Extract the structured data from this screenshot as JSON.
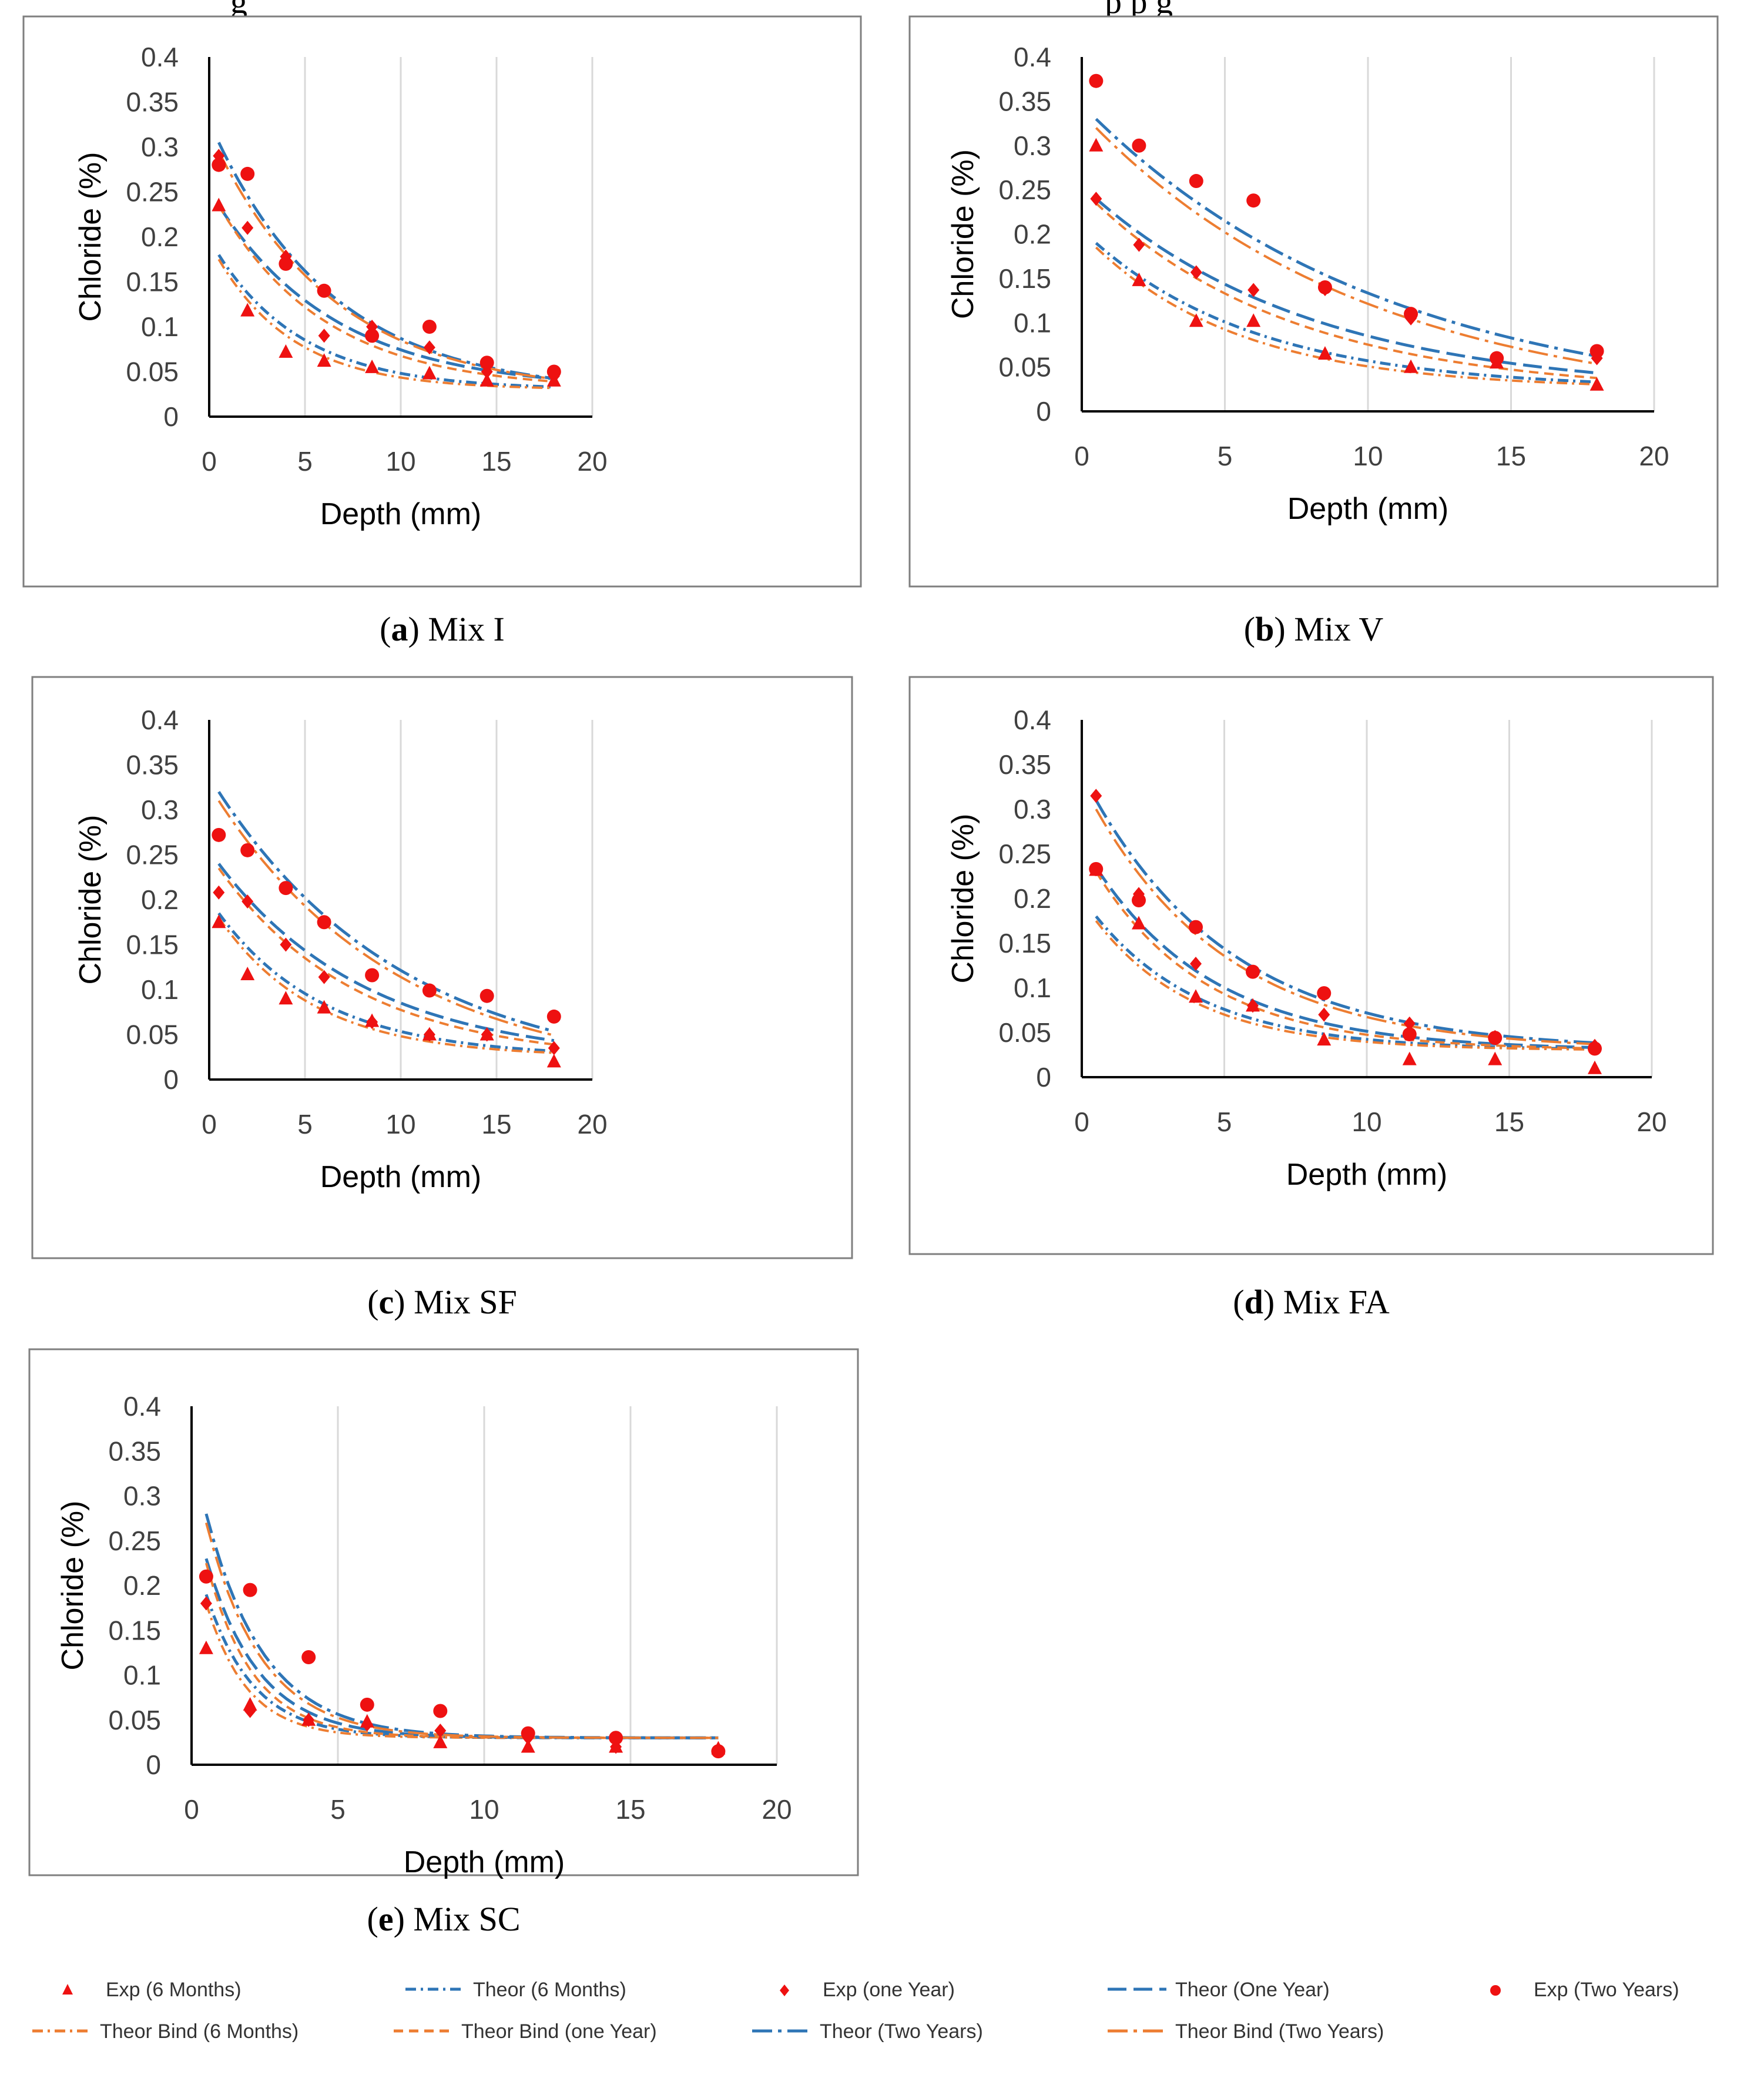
{
  "top_fragments": {
    "left": "g",
    "right": "p   p   g"
  },
  "series_styles": {
    "exp6": {
      "color": "#ee1111",
      "marker": "triangle"
    },
    "exp1": {
      "color": "#ee1111",
      "marker": "diamond"
    },
    "exp2": {
      "color": "#ee1111",
      "marker": "circle"
    },
    "theor6": {
      "color": "#2e75b6",
      "dash": "dashdot-fine"
    },
    "theor1": {
      "color": "#2e75b6",
      "dash": "long-dash"
    },
    "theor2": {
      "color": "#2e75b6",
      "dash": "long-dashdot"
    },
    "bind6": {
      "color": "#ed7d31",
      "dash": "dashdot-fine"
    },
    "bind1": {
      "color": "#ed7d31",
      "dash": "dash"
    },
    "bind2": {
      "color": "#ed7d31",
      "dash": "long-dashdot"
    }
  },
  "legend": [
    {
      "key": "exp6",
      "label": "Exp (6 Months)"
    },
    {
      "key": "theor6",
      "label": "Theor (6 Months)"
    },
    {
      "key": "exp1",
      "label": "Exp (one Year)"
    },
    {
      "key": "theor1",
      "label": "Theor (One Year)"
    },
    {
      "key": "exp2",
      "label": "Exp (Two Years)"
    },
    {
      "key": "bind6",
      "label": "Theor Bind (6 Months)"
    },
    {
      "key": "bind1",
      "label": "Theor Bind (one Year)"
    },
    {
      "key": "theor2",
      "label": "Theor (Two Years)"
    },
    {
      "key": "bind2",
      "label": "Theor Bind (Two Years)"
    }
  ],
  "chart_data": [
    {
      "id": "a",
      "type": "scatter",
      "caption_letter": "a",
      "caption_text": "Mix I",
      "xlabel": "Depth (mm)",
      "ylabel": "Chloride (%)",
      "xlim": [
        0,
        20
      ],
      "ylim": [
        0,
        0.4
      ],
      "xticks": [
        "0",
        "5",
        "10",
        "15",
        "20"
      ],
      "yticks": [
        "0",
        "0.05",
        "0.1",
        "0.15",
        "0.2",
        "0.25",
        "0.3",
        "0.35",
        "0.4"
      ],
      "depths": [
        0.5,
        2,
        4,
        6,
        8.5,
        11.5,
        14.5,
        18
      ],
      "exp6": [
        0.235,
        0.118,
        0.072,
        0.062,
        0.055,
        0.048,
        0.04,
        0.04
      ],
      "exp1": [
        0.29,
        0.21,
        0.178,
        0.09,
        0.1,
        0.077,
        0.05,
        0.045
      ],
      "exp2": [
        0.28,
        0.27,
        0.17,
        0.14,
        0.09,
        0.1,
        0.06,
        0.05
      ],
      "curves": {
        "theor6": {
          "y0": 0.18,
          "yinf": 0.03,
          "k": 4.5
        },
        "bind6": {
          "y0": 0.175,
          "yinf": 0.03,
          "k": 4.0
        },
        "theor1": {
          "y0": 0.235,
          "yinf": 0.03,
          "k": 6.2
        },
        "bind1": {
          "y0": 0.235,
          "yinf": 0.03,
          "k": 5.6
        },
        "theor2": {
          "y0": 0.305,
          "yinf": 0.025,
          "k": 6.3
        },
        "bind2": {
          "y0": 0.295,
          "yinf": 0.025,
          "k": 6.3
        }
      }
    },
    {
      "id": "b",
      "type": "scatter",
      "caption_letter": "b",
      "caption_text": "Mix V",
      "xlabel": "Depth (mm)",
      "ylabel": "Chloride (%)",
      "xlim": [
        0,
        20
      ],
      "ylim": [
        0,
        0.4
      ],
      "xticks": [
        "0",
        "5",
        "10",
        "15",
        "20"
      ],
      "yticks": [
        "0",
        "0.05",
        "0.1",
        "0.15",
        "0.2",
        "0.25",
        "0.3",
        "0.35",
        "0.4"
      ],
      "depths": [
        0.5,
        2,
        4,
        6,
        8.5,
        11.5,
        14.5,
        18
      ],
      "exp6": [
        0.3,
        0.148,
        0.102,
        0.102,
        0.065,
        0.05,
        0.055,
        0.03
      ],
      "exp1": [
        0.24,
        0.188,
        0.157,
        0.137,
        0.138,
        0.105,
        0.06,
        0.06
      ],
      "exp2": [
        0.373,
        0.3,
        0.26,
        0.238,
        0.14,
        0.11,
        0.06,
        0.068
      ],
      "curves": {
        "theor6": {
          "y0": 0.19,
          "yinf": 0.025,
          "k": 5.8
        },
        "bind6": {
          "y0": 0.185,
          "yinf": 0.025,
          "k": 5.2
        },
        "theor1": {
          "y0": 0.24,
          "yinf": 0.02,
          "k": 7.8
        },
        "bind1": {
          "y0": 0.235,
          "yinf": 0.02,
          "k": 7.0
        },
        "theor2": {
          "y0": 0.33,
          "yinf": 0.0,
          "k": 10.5
        },
        "bind2": {
          "y0": 0.32,
          "yinf": 0.0,
          "k": 9.8
        }
      }
    },
    {
      "id": "c",
      "type": "scatter",
      "caption_letter": "c",
      "caption_text": "Mix SF",
      "xlabel": "Depth (mm)",
      "ylabel": "Chloride (%)",
      "xlim": [
        0,
        20
      ],
      "ylim": [
        0,
        0.4
      ],
      "xticks": [
        "0",
        "5",
        "10",
        "15",
        "20"
      ],
      "yticks": [
        "0",
        "0.05",
        "0.1",
        "0.15",
        "0.2",
        "0.25",
        "0.3",
        "0.35",
        "0.4"
      ],
      "depths": [
        0.5,
        2,
        4,
        6,
        8.5,
        11.5,
        14.5,
        18
      ],
      "exp6": [
        0.175,
        0.117,
        0.09,
        0.08,
        0.065,
        0.05,
        0.05,
        0.02
      ],
      "exp1": [
        0.208,
        0.198,
        0.15,
        0.114,
        0.064,
        0.05,
        0.05,
        0.035
      ],
      "exp2": [
        0.272,
        0.255,
        0.213,
        0.175,
        0.116,
        0.099,
        0.093,
        0.07
      ],
      "curves": {
        "theor6": {
          "y0": 0.185,
          "yinf": 0.025,
          "k": 5.5
        },
        "bind6": {
          "y0": 0.18,
          "yinf": 0.025,
          "k": 5.0
        },
        "theor1": {
          "y0": 0.24,
          "yinf": 0.02,
          "k": 7.8
        },
        "bind1": {
          "y0": 0.235,
          "yinf": 0.02,
          "k": 7.2
        },
        "theor2": {
          "y0": 0.32,
          "yinf": 0.0,
          "k": 9.8
        },
        "bind2": {
          "y0": 0.31,
          "yinf": 0.0,
          "k": 9.5
        }
      }
    },
    {
      "id": "d",
      "type": "scatter",
      "caption_letter": "d",
      "caption_text": "Mix FA",
      "xlabel": "Depth (mm)",
      "ylabel": "Chloride (%)",
      "xlim": [
        0,
        20
      ],
      "ylim": [
        0,
        0.4
      ],
      "xticks": [
        "0",
        "5",
        "10",
        "15",
        "20"
      ],
      "yticks": [
        "0",
        "0.05",
        "0.1",
        "0.15",
        "0.2",
        "0.25",
        "0.3",
        "0.35",
        "0.4"
      ],
      "depths": [
        0.5,
        2,
        4,
        6,
        8.5,
        11.5,
        14.5,
        18
      ],
      "exp6": [
        0.232,
        0.172,
        0.09,
        0.08,
        0.042,
        0.02,
        0.02,
        0.01
      ],
      "exp1": [
        0.315,
        0.205,
        0.127,
        0.08,
        0.07,
        0.06,
        0.045,
        0.035
      ],
      "exp2": [
        0.233,
        0.198,
        0.168,
        0.118,
        0.094,
        0.048,
        0.044,
        0.032
      ],
      "curves": {
        "theor6": {
          "y0": 0.18,
          "yinf": 0.03,
          "k": 3.8
        },
        "bind6": {
          "y0": 0.175,
          "yinf": 0.03,
          "k": 3.5
        },
        "theor1": {
          "y0": 0.235,
          "yinf": 0.03,
          "k": 4.2
        },
        "bind1": {
          "y0": 0.23,
          "yinf": 0.03,
          "k": 3.9
        },
        "theor2": {
          "y0": 0.31,
          "yinf": 0.03,
          "k": 5.0
        },
        "bind2": {
          "y0": 0.3,
          "yinf": 0.03,
          "k": 4.8
        }
      }
    },
    {
      "id": "e",
      "type": "scatter",
      "caption_letter": "e",
      "caption_text": "Mix SC",
      "xlabel": "Depth (mm)",
      "ylabel": "Chloride (%)",
      "xlim": [
        0,
        20
      ],
      "ylim": [
        0,
        0.4
      ],
      "xticks": [
        "0",
        "5",
        "10",
        "15",
        "20"
      ],
      "yticks": [
        "0",
        "0.05",
        "0.1",
        "0.15",
        "0.2",
        "0.25",
        "0.3",
        "0.35",
        "0.4"
      ],
      "depths": [
        0.5,
        2,
        4,
        6,
        8.5,
        11.5,
        14.5,
        18
      ],
      "exp6": [
        0.13,
        0.067,
        0.05,
        0.048,
        0.025,
        0.02,
        0.02,
        0.018
      ],
      "exp1": [
        0.18,
        0.06,
        0.05,
        0.045,
        0.038,
        0.03,
        0.02,
        0.015
      ],
      "exp2": [
        0.21,
        0.195,
        0.12,
        0.067,
        0.06,
        0.035,
        0.03,
        0.015
      ],
      "curves": {
        "theor6": {
          "y0": 0.19,
          "yinf": 0.03,
          "k": 1.6
        },
        "bind6": {
          "y0": 0.18,
          "yinf": 0.03,
          "k": 1.4
        },
        "theor1": {
          "y0": 0.23,
          "yinf": 0.03,
          "k": 1.8
        },
        "bind1": {
          "y0": 0.225,
          "yinf": 0.03,
          "k": 1.6
        },
        "theor2": {
          "y0": 0.28,
          "yinf": 0.03,
          "k": 2.0
        },
        "bind2": {
          "y0": 0.27,
          "yinf": 0.03,
          "k": 1.9
        }
      }
    }
  ]
}
